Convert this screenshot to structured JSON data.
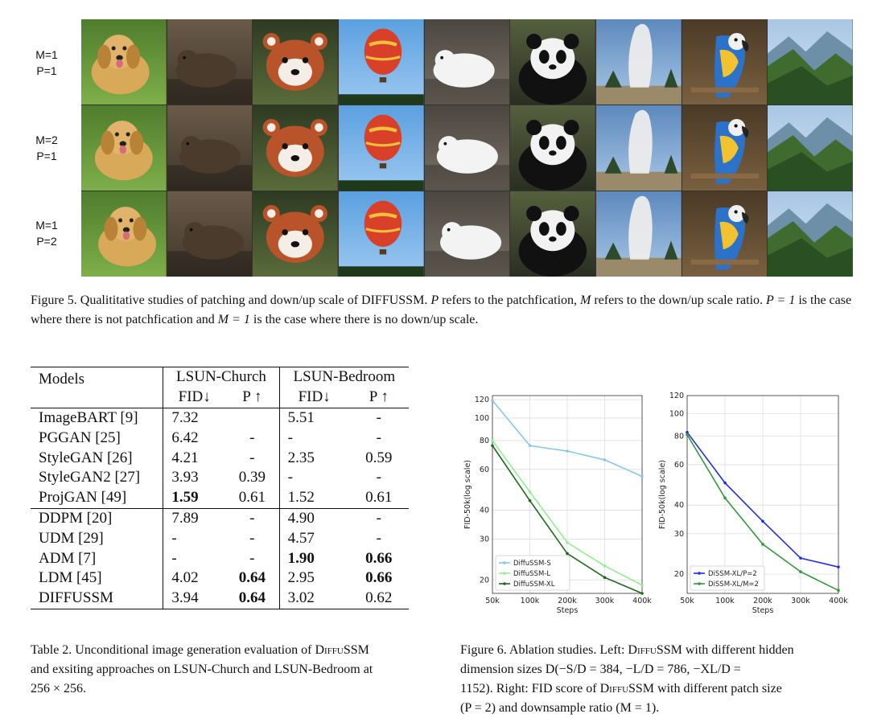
{
  "figure5": {
    "row_labels": [
      {
        "m": "M=1",
        "p": "P=1"
      },
      {
        "m": "M=2",
        "p": "P=1"
      },
      {
        "m": "M=1",
        "p": "P=2"
      }
    ],
    "subjects": [
      "dog",
      "otter",
      "red-panda",
      "hot-air-balloon",
      "arctic-fox",
      "panda",
      "geyser",
      "macaw",
      "mountain-valley"
    ],
    "caption_prefix": "Figure 5. Qualititative studies of patching and down/up scale of ",
    "caption_name_d": "D",
    "caption_name_rest": "IFFU",
    "caption_name_ssm": "SSM",
    "caption_rest_1": ". ",
    "caption_var_p": "P",
    "caption_rest_2": " refers to the patchfication, ",
    "caption_var_m": "M",
    "caption_rest_3": " refers to the down/up scale ratio. ",
    "caption_eq1": "P = 1",
    "caption_rest_4": " is the case where there is not patchfication and ",
    "caption_eq2": "M = 1",
    "caption_rest_5": " is the case where there is no down/up scale."
  },
  "table2": {
    "header": {
      "models": "Models",
      "group1": "LSUN-Church",
      "group2": "LSUN-Bedroom",
      "fid": "FID↓",
      "p": "P ↑"
    },
    "rows_group1": [
      {
        "model": "ImageBART [9]",
        "c_fid": "7.32",
        "c_p": "",
        "b_fid": "5.51",
        "b_p": "-"
      },
      {
        "model": "PGGAN [25]",
        "c_fid": "6.42",
        "c_p": "-",
        "b_fid": "-",
        "b_p": "-"
      },
      {
        "model": "StyleGAN [26]",
        "c_fid": "4.21",
        "c_p": "-",
        "b_fid": "2.35",
        "b_p": "0.59"
      },
      {
        "model": "StyleGAN2 [27]",
        "c_fid": "3.93",
        "c_p": "0.39",
        "b_fid": "-",
        "b_p": "-"
      },
      {
        "model": "ProjGAN [49]",
        "c_fid": "1.59",
        "c_p": "0.61",
        "b_fid": "1.52",
        "b_p": "0.61"
      }
    ],
    "rows_group2": [
      {
        "model": "DDPM [20]",
        "c_fid": "7.89",
        "c_p": "-",
        "b_fid": "4.90",
        "b_p": "-"
      },
      {
        "model": "UDM [29]",
        "c_fid": "-",
        "c_p": "-",
        "b_fid": "4.57",
        "b_p": "-"
      },
      {
        "model": "ADM [7]",
        "c_fid": "-",
        "c_p": "-",
        "b_fid": "1.90",
        "b_p": "0.66"
      },
      {
        "model": "LDM [45]",
        "c_fid": "4.02",
        "c_p": "0.64",
        "b_fid": "2.95",
        "b_p": "0.66"
      },
      {
        "model": "DIFFUSSM",
        "c_fid": "3.94",
        "c_p": "0.64",
        "b_fid": "3.02",
        "b_p": "0.62"
      }
    ],
    "bold_cells": [
      "ProjGAN [49].c_fid",
      "ADM [7].b_fid",
      "ADM [7].b_p",
      "LDM [45].c_p",
      "LDM [45].b_p",
      "DIFFUSSM.c_p"
    ],
    "caption_line1_a": "Table 2. Unconditional image generation evaluation of ",
    "caption_name": "DiffuSSM",
    "caption_line2": "and exsiting approaches on LSUN-Church and LSUN-Bedroom at",
    "caption_line3": "256 × 256."
  },
  "figure6": {
    "caption_line1_a": "Figure 6. Ablation studies. Left: ",
    "caption_name": "DiffuSSM",
    "caption_line1_b": " with different hidden",
    "caption_line2": "dimension sizes D(−S/D = 384, −L/D = 786, −XL/D =",
    "caption_line3_a": "1152). Right: FID score of ",
    "caption_line3_b": " with different patch size",
    "caption_line4": "(P = 2) and downsample ratio (M = 1)."
  },
  "chart_data": [
    {
      "type": "line",
      "x": [
        "50k",
        "100k",
        "200k",
        "300k",
        "400k"
      ],
      "xlabel": "Steps",
      "ylabel": "FID-50k(log scale)",
      "yscale": "log",
      "ylim": [
        17.5,
        125
      ],
      "yticks": [
        20,
        30,
        40,
        60,
        80,
        100,
        120
      ],
      "grid": true,
      "legend": "lower-left",
      "series": [
        {
          "name": "DiffuSSM-S",
          "color": "#87c7ea",
          "values": [
            119,
            76,
            72,
            66,
            56
          ]
        },
        {
          "name": "DiffuSSM-L",
          "color": "#90ee90",
          "values": [
            80,
            48,
            29,
            23,
            19
          ]
        },
        {
          "name": "DiffuSSM-XL",
          "color": "#1a6b1a",
          "values": [
            76,
            44,
            26,
            20.5,
            17.5
          ]
        }
      ]
    },
    {
      "type": "line",
      "x": [
        "50k",
        "100k",
        "200k",
        "300k",
        "400k"
      ],
      "xlabel": "Steps",
      "ylabel": "FID-50k(log scale)",
      "yscale": "log",
      "ylim": [
        16.5,
        120
      ],
      "yticks": [
        20,
        30,
        40,
        60,
        80,
        100,
        120
      ],
      "grid": true,
      "legend": "lower-left",
      "series": [
        {
          "name": "DiSSM-XL/P=2",
          "color": "#1f2ee0",
          "values": [
            83,
            50,
            34,
            23.5,
            21.5
          ]
        },
        {
          "name": "DiSSM-XL/M=2",
          "color": "#2f9a3a",
          "values": [
            81,
            43,
            27,
            20.5,
            17
          ]
        }
      ]
    }
  ]
}
